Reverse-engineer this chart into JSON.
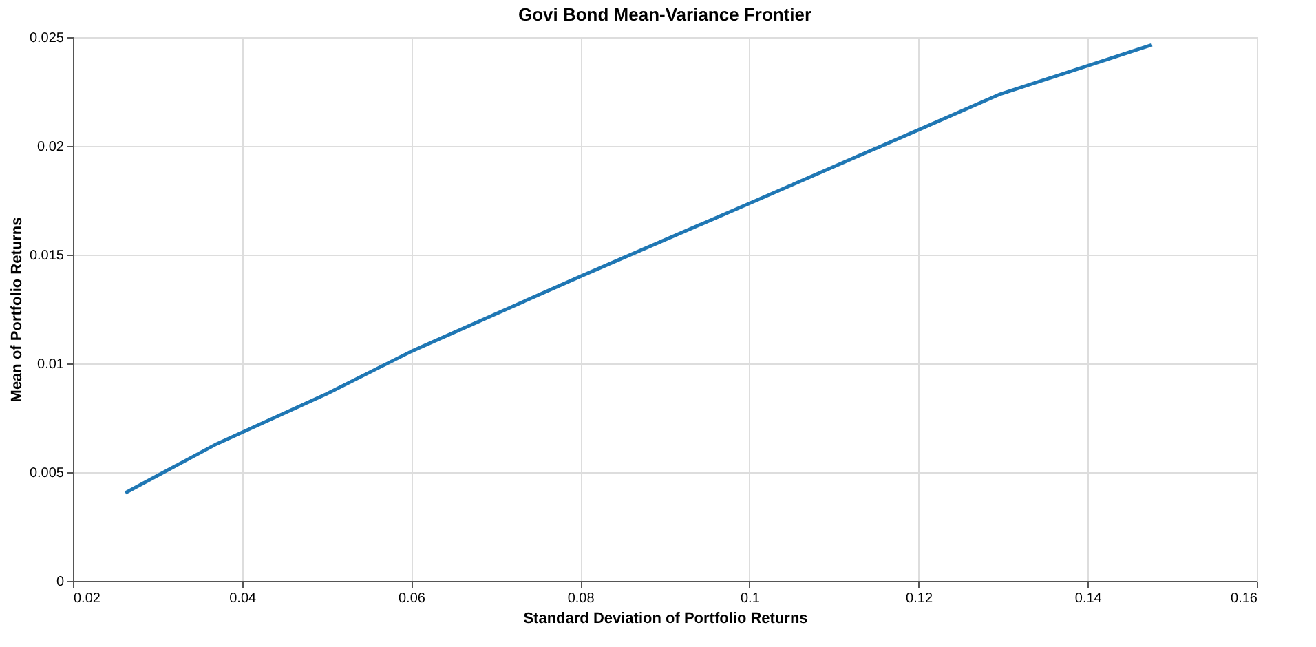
{
  "chart_data": {
    "type": "line",
    "title": "Govi Bond Mean-Variance Frontier",
    "xlabel": "Standard Deviation of Portfolio Returns",
    "ylabel": "Mean of Portfolio Returns",
    "x": [
      0.0262,
      0.037,
      0.05,
      0.06,
      0.08,
      0.1,
      0.12,
      0.1295,
      0.1476
    ],
    "series": [
      {
        "color": "#1f77b4",
        "values": [
          0.00405,
          0.0063,
          0.0086,
          0.01055,
          0.014,
          0.01736,
          0.02074,
          0.02236,
          0.02465
        ]
      }
    ],
    "xlim": [
      0.02,
      0.16
    ],
    "xticks": [
      0.02,
      0.04,
      0.06,
      0.08,
      0.1,
      0.12,
      0.14,
      0.16
    ],
    "ylim": [
      0,
      0.025
    ],
    "yticks": [
      0,
      0.005,
      0.01,
      0.015,
      0.02,
      0.025
    ],
    "grid": true,
    "marker": "none",
    "line_style": "solid"
  }
}
